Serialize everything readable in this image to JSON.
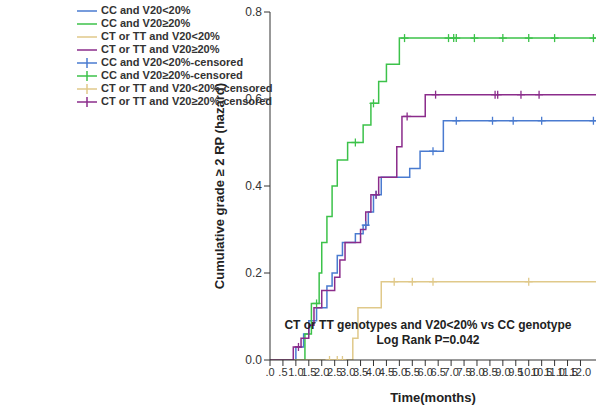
{
  "chart_data": {
    "type": "line",
    "x_label": "Time(months)",
    "y_label": "Cumulative grade ≥ 2 RP (hazard)",
    "annotations": [
      "CT or TT genotypes and V20<20% vs CC genotype",
      "Log Rank P=0.042"
    ],
    "xlim": [
      0,
      12.6
    ],
    "ylim": [
      0,
      0.8
    ],
    "xticks": [
      {
        "value": 0,
        "label": ".0"
      },
      {
        "value": 0.5,
        "label": ".5"
      },
      {
        "value": 1,
        "label": "1.0"
      },
      {
        "value": 1.5,
        "label": "1.5"
      },
      {
        "value": 2,
        "label": "2.0"
      },
      {
        "value": 2.5,
        "label": "2.5"
      },
      {
        "value": 3,
        "label": "3.0"
      },
      {
        "value": 3.5,
        "label": "3.5"
      },
      {
        "value": 4,
        "label": "4.0"
      },
      {
        "value": 4.5,
        "label": "4.5"
      },
      {
        "value": 5,
        "label": "5.0"
      },
      {
        "value": 5.5,
        "label": "5.5"
      },
      {
        "value": 6,
        "label": "6.0"
      },
      {
        "value": 6.5,
        "label": "6.5"
      },
      {
        "value": 7,
        "label": "7.0"
      },
      {
        "value": 7.5,
        "label": "7.5"
      },
      {
        "value": 8,
        "label": "8.0"
      },
      {
        "value": 8.5,
        "label": "8.5"
      },
      {
        "value": 9,
        "label": "9.0"
      },
      {
        "value": 9.5,
        "label": "9.5"
      },
      {
        "value": 10,
        "label": "10.0"
      },
      {
        "value": 10.5,
        "label": "10.5"
      },
      {
        "value": 11,
        "label": "11.0"
      },
      {
        "value": 11.5,
        "label": "11.5"
      },
      {
        "value": 12,
        "label": "12.0"
      }
    ],
    "yticks": [
      {
        "value": 0,
        "label": "0.0"
      },
      {
        "value": 0.2,
        "label": "0.2"
      },
      {
        "value": 0.4,
        "label": "0.4"
      },
      {
        "value": 0.6,
        "label": "0.6"
      },
      {
        "value": 0.8,
        "label": "0.8"
      }
    ],
    "legend": "upper left",
    "series": [
      {
        "name": "CC and V20<20%",
        "type": "line",
        "line_style": "step",
        "color": "#4a7bd0",
        "x": [
          0,
          1.0,
          1.3,
          1.5,
          1.8,
          2.2,
          2.4,
          2.6,
          2.8,
          3.3,
          3.6,
          3.8,
          4.0,
          4.3,
          5.4,
          5.8,
          6.7,
          12.6
        ],
        "values": [
          0,
          0.03,
          0.06,
          0.09,
          0.12,
          0.17,
          0.2,
          0.24,
          0.27,
          0.29,
          0.31,
          0.34,
          0.38,
          0.42,
          0.44,
          0.48,
          0.55,
          0.55
        ]
      },
      {
        "name": "CC and V20≥20%",
        "type": "line",
        "line_style": "step",
        "color": "#3cc24a",
        "x": [
          0,
          1.35,
          1.6,
          1.9,
          2.0,
          2.2,
          2.4,
          2.6,
          3.0,
          3.6,
          3.9,
          4.2,
          4.5,
          5.0,
          12.6
        ],
        "values": [
          0,
          0.06,
          0.13,
          0.2,
          0.27,
          0.33,
          0.4,
          0.46,
          0.5,
          0.54,
          0.59,
          0.64,
          0.68,
          0.74,
          0.74
        ]
      },
      {
        "name": "CT or TT and V20<20%",
        "type": "line",
        "line_style": "step",
        "color": "#e0c98a",
        "x": [
          0,
          3.2,
          3.4,
          4.3,
          12.6
        ],
        "values": [
          0,
          0.05,
          0.12,
          0.18,
          0.18
        ]
      },
      {
        "name": "CT or TT and V20≥20%",
        "type": "line",
        "line_style": "step",
        "color": "#8b2c8b",
        "x": [
          0,
          0.9,
          1.2,
          1.5,
          1.7,
          2.0,
          2.5,
          2.7,
          2.9,
          3.5,
          3.7,
          3.9,
          4.2,
          4.9,
          5.1,
          6.0,
          12.6
        ],
        "values": [
          0,
          0.03,
          0.05,
          0.08,
          0.12,
          0.16,
          0.19,
          0.23,
          0.27,
          0.3,
          0.34,
          0.38,
          0.42,
          0.49,
          0.56,
          0.61,
          0.61
        ]
      },
      {
        "name": "CC and V20<20%-censored",
        "type": "scatter",
        "marker": "plus",
        "color": "#4a7bd0",
        "x": [
          3.7,
          4.1,
          6.3,
          7.2,
          8.6,
          9.4,
          10.5,
          12.5
        ],
        "values": [
          0.31,
          0.38,
          0.48,
          0.55,
          0.55,
          0.55,
          0.55,
          0.55
        ]
      },
      {
        "name": "CC and V20≥20%-censored",
        "type": "scatter",
        "marker": "plus",
        "color": "#3cc24a",
        "x": [
          1.8,
          3.3,
          4.0,
          5.2,
          6.9,
          7.1,
          7.2,
          7.9,
          9.0,
          10.0,
          11.0,
          12.5
        ],
        "values": [
          0.13,
          0.5,
          0.59,
          0.74,
          0.74,
          0.74,
          0.74,
          0.74,
          0.74,
          0.74,
          0.74,
          0.74
        ]
      },
      {
        "name": "CT or TT and V20<20%-censored",
        "type": "scatter",
        "marker": "plus",
        "color": "#e0c98a",
        "x": [
          2.3,
          2.6,
          2.8,
          4.8,
          5.5,
          6.3,
          10.0
        ],
        "values": [
          0,
          0,
          0,
          0.18,
          0.18,
          0.18,
          0.18
        ]
      },
      {
        "name": "CT or TT and V20≥20%-censored",
        "type": "scatter",
        "marker": "plus",
        "color": "#8b2c8b",
        "x": [
          1.1,
          4.1,
          5.3,
          6.4,
          8.7,
          8.8,
          9.7,
          10.4
        ],
        "values": [
          0.03,
          0.38,
          0.56,
          0.61,
          0.61,
          0.61,
          0.61,
          0.61
        ]
      }
    ]
  }
}
